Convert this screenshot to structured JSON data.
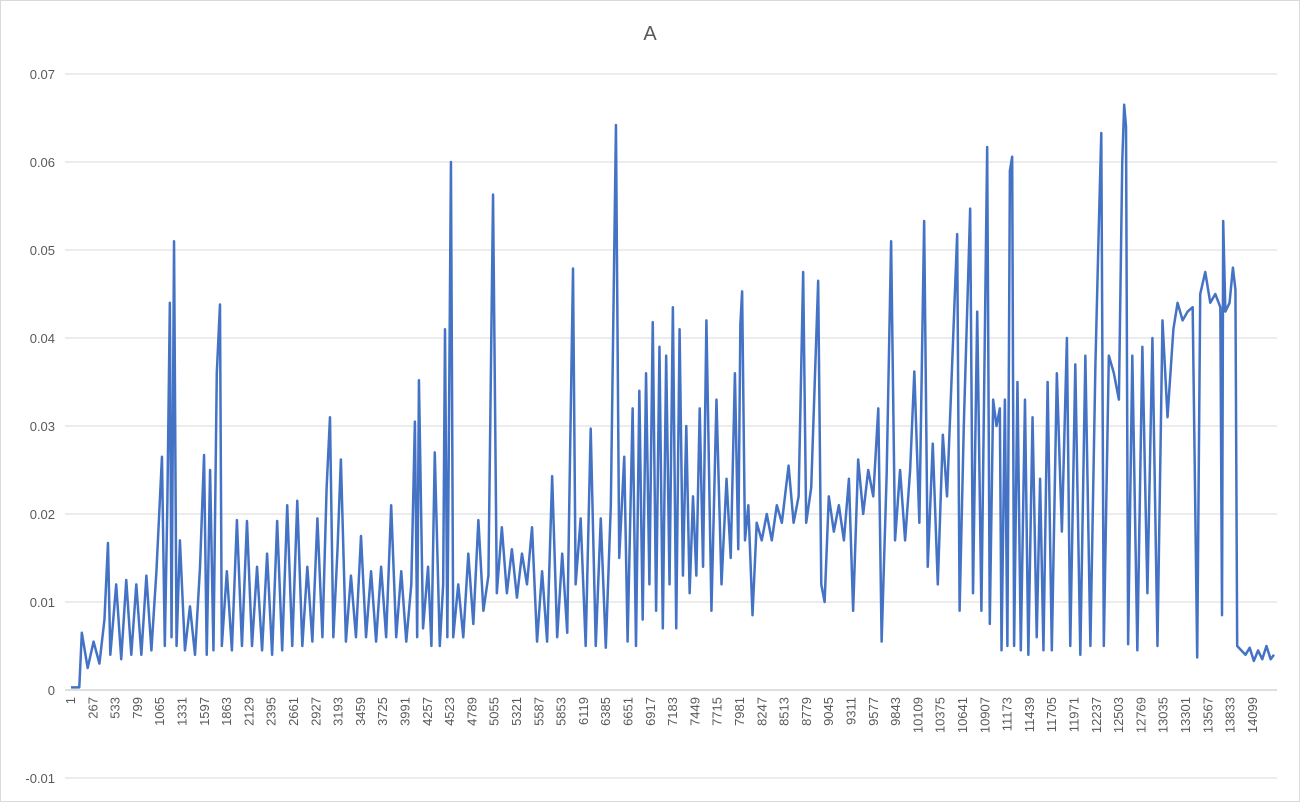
{
  "chart_data": {
    "type": "line",
    "title": "A",
    "color": "#4472c4",
    "grid": true,
    "xlim": [
      1,
      14362
    ],
    "ylim": [
      -0.01,
      0.07
    ],
    "yticks": [
      -0.01,
      0,
      0.01,
      0.02,
      0.03,
      0.04,
      0.05,
      0.06,
      0.07
    ],
    "xticks": [
      1,
      267,
      533,
      799,
      1065,
      1331,
      1597,
      1863,
      2129,
      2395,
      2661,
      2927,
      3193,
      3459,
      3725,
      3991,
      4257,
      4523,
      4789,
      5055,
      5321,
      5587,
      5853,
      6119,
      6385,
      6651,
      6917,
      7183,
      7449,
      7715,
      7981,
      8247,
      8513,
      8779,
      9045,
      9311,
      9577,
      9843,
      10109,
      10375,
      10641,
      10907,
      11173,
      11439,
      11705,
      11971,
      12237,
      12503,
      12769,
      13035,
      13301,
      13567,
      13833,
      14099
    ],
    "x": [
      1,
      80,
      100,
      130,
      200,
      270,
      340,
      400,
      442,
      470,
      540,
      600,
      660,
      720,
      780,
      840,
      900,
      960,
      1020,
      1086,
      1120,
      1150,
      1180,
      1200,
      1230,
      1260,
      1300,
      1360,
      1420,
      1480,
      1540,
      1588,
      1620,
      1660,
      1700,
      1740,
      1778,
      1800,
      1860,
      1920,
      1980,
      2040,
      2100,
      2160,
      2220,
      2280,
      2340,
      2400,
      2460,
      2520,
      2580,
      2640,
      2700,
      2760,
      2820,
      2880,
      2940,
      3000,
      3050,
      3090,
      3130,
      3180,
      3220,
      3280,
      3340,
      3400,
      3460,
      3520,
      3580,
      3640,
      3700,
      3760,
      3820,
      3880,
      3940,
      4000,
      4060,
      4103,
      4130,
      4151,
      4200,
      4260,
      4300,
      4340,
      4400,
      4440,
      4462,
      4490,
      4533,
      4560,
      4620,
      4680,
      4740,
      4800,
      4860,
      4920,
      4980,
      5035,
      5080,
      5140,
      5200,
      5260,
      5320,
      5380,
      5440,
      5500,
      5560,
      5620,
      5680,
      5740,
      5800,
      5860,
      5920,
      5989,
      6020,
      6080,
      6140,
      6200,
      6260,
      6320,
      6380,
      6440,
      6501,
      6540,
      6600,
      6640,
      6700,
      6740,
      6780,
      6820,
      6860,
      6900,
      6940,
      6980,
      7020,
      7060,
      7100,
      7140,
      7180,
      7220,
      7260,
      7300,
      7340,
      7380,
      7420,
      7460,
      7500,
      7540,
      7580,
      7640,
      7700,
      7760,
      7820,
      7870,
      7920,
      7960,
      7985,
      8006,
      8040,
      8080,
      8130,
      8180,
      8240,
      8300,
      8360,
      8420,
      8480,
      8560,
      8620,
      8680,
      8734,
      8770,
      8830,
      8913,
      8950,
      8990,
      9040,
      9100,
      9160,
      9220,
      9280,
      9330,
      9390,
      9450,
      9510,
      9570,
      9630,
      9670,
      9730,
      9783,
      9830,
      9890,
      9950,
      10010,
      10060,
      10120,
      10177,
      10220,
      10280,
      10340,
      10400,
      10450,
      10571,
      10600,
      10650,
      10726,
      10760,
      10810,
      10860,
      10929,
      10960,
      11000,
      11040,
      11080,
      11100,
      11140,
      11170,
      11200,
      11227,
      11250,
      11290,
      11330,
      11380,
      11420,
      11470,
      11520,
      11560,
      11600,
      11650,
      11700,
      11760,
      11820,
      11880,
      11920,
      11980,
      12040,
      12100,
      12160,
      12220,
      12260,
      12290,
      12320,
      12380,
      12440,
      12500,
      12540,
      12563,
      12585,
      12610,
      12660,
      12720,
      12780,
      12840,
      12900,
      12960,
      13020,
      13080,
      13150,
      13200,
      13260,
      13320,
      13380,
      13434,
      13470,
      13530,
      13590,
      13650,
      13710,
      13730,
      13744,
      13770,
      13820,
      13860,
      13890,
      13911,
      13960,
      14010,
      14060,
      14110,
      14160,
      14210,
      14260,
      14310,
      14350
    ],
    "values": [
      0.0003,
      0.0003,
      0.0003,
      0.0065,
      0.0025,
      0.0055,
      0.003,
      0.008,
      0.0167,
      0.004,
      0.012,
      0.0035,
      0.0125,
      0.004,
      0.012,
      0.004,
      0.013,
      0.0045,
      0.0135,
      0.0265,
      0.005,
      0.021,
      0.044,
      0.006,
      0.051,
      0.005,
      0.017,
      0.0045,
      0.0095,
      0.004,
      0.014,
      0.0267,
      0.004,
      0.025,
      0.0045,
      0.036,
      0.0438,
      0.005,
      0.0135,
      0.0045,
      0.0193,
      0.005,
      0.0192,
      0.005,
      0.014,
      0.0045,
      0.0155,
      0.004,
      0.0192,
      0.0045,
      0.021,
      0.005,
      0.0215,
      0.005,
      0.014,
      0.0055,
      0.0195,
      0.006,
      0.023,
      0.031,
      0.006,
      0.016,
      0.0262,
      0.0055,
      0.013,
      0.006,
      0.0175,
      0.006,
      0.0135,
      0.0055,
      0.014,
      0.006,
      0.021,
      0.006,
      0.0135,
      0.0055,
      0.012,
      0.0305,
      0.006,
      0.0352,
      0.007,
      0.014,
      0.005,
      0.027,
      0.005,
      0.012,
      0.041,
      0.006,
      0.06,
      0.006,
      0.012,
      0.006,
      0.0155,
      0.0075,
      0.0193,
      0.009,
      0.013,
      0.0563,
      0.011,
      0.0185,
      0.011,
      0.016,
      0.0105,
      0.0155,
      0.012,
      0.0185,
      0.0055,
      0.0135,
      0.0055,
      0.0243,
      0.006,
      0.0155,
      0.0065,
      0.0479,
      0.012,
      0.0195,
      0.005,
      0.0297,
      0.005,
      0.0195,
      0.0048,
      0.021,
      0.0642,
      0.015,
      0.0265,
      0.0055,
      0.032,
      0.005,
      0.034,
      0.008,
      0.036,
      0.012,
      0.0418,
      0.009,
      0.039,
      0.007,
      0.038,
      0.012,
      0.0435,
      0.007,
      0.041,
      0.013,
      0.03,
      0.011,
      0.022,
      0.013,
      0.032,
      0.014,
      0.042,
      0.009,
      0.033,
      0.012,
      0.024,
      0.015,
      0.036,
      0.016,
      0.0415,
      0.0453,
      0.017,
      0.021,
      0.0085,
      0.019,
      0.017,
      0.02,
      0.017,
      0.021,
      0.019,
      0.0255,
      0.019,
      0.022,
      0.0475,
      0.019,
      0.023,
      0.0465,
      0.012,
      0.01,
      0.022,
      0.018,
      0.021,
      0.017,
      0.024,
      0.009,
      0.0262,
      0.02,
      0.025,
      0.022,
      0.032,
      0.0055,
      0.0245,
      0.051,
      0.017,
      0.025,
      0.017,
      0.025,
      0.0362,
      0.019,
      0.0533,
      0.014,
      0.028,
      0.012,
      0.029,
      0.022,
      0.0518,
      0.009,
      0.03,
      0.0547,
      0.011,
      0.043,
      0.009,
      0.0617,
      0.0075,
      0.033,
      0.03,
      0.032,
      0.0045,
      0.033,
      0.005,
      0.059,
      0.0606,
      0.005,
      0.035,
      0.0045,
      0.033,
      0.004,
      0.031,
      0.006,
      0.024,
      0.0045,
      0.035,
      0.0045,
      0.036,
      0.018,
      0.04,
      0.005,
      0.037,
      0.004,
      0.038,
      0.005,
      0.037,
      0.0525,
      0.0633,
      0.005,
      0.038,
      0.036,
      0.033,
      0.06,
      0.0665,
      0.064,
      0.0052,
      0.038,
      0.0045,
      0.039,
      0.011,
      0.04,
      0.005,
      0.042,
      0.031,
      0.041,
      0.044,
      0.042,
      0.043,
      0.0435,
      0.0037,
      0.045,
      0.0475,
      0.044,
      0.045,
      0.0435,
      0.0085,
      0.0533,
      0.043,
      0.044,
      0.048,
      0.0455,
      0.005,
      0.0045,
      0.004,
      0.0048,
      0.0033,
      0.0045,
      0.0035,
      0.005,
      0.0035,
      0.004
    ]
  }
}
